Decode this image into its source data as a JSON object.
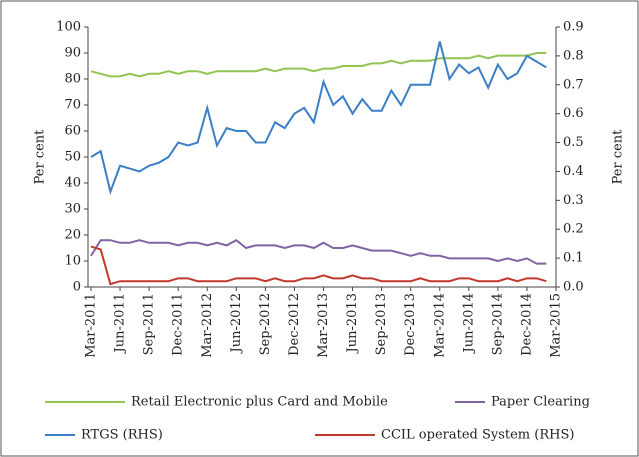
{
  "chart_data": {
    "type": "line",
    "categories": [
      "Mar-2011",
      null,
      null,
      "Jun-2011",
      null,
      null,
      "Sep-2011",
      null,
      null,
      "Dec-2011",
      null,
      null,
      "Mar-2012",
      null,
      null,
      "Jun-2012",
      null,
      null,
      "Sep-2012",
      null,
      null,
      "Dec-2012",
      null,
      null,
      "Mar-2013",
      null,
      null,
      "Jun-2013",
      null,
      null,
      "Sep-2013",
      null,
      null,
      "Dec-2013",
      null,
      null,
      "Mar-2014",
      null,
      null,
      "Jun-2014",
      null,
      null,
      "Sep-2014",
      null,
      null,
      "Dec-2014",
      null,
      null,
      "Mar-2015"
    ],
    "series": [
      {
        "name": "Retail Electronic plus Card and Mobile",
        "color": "#92c353",
        "axis": "y",
        "values": [
          83,
          82,
          81,
          81,
          82,
          81,
          82,
          82,
          83,
          82,
          83,
          83,
          82,
          83,
          83,
          83,
          83,
          83,
          84,
          83,
          84,
          84,
          84,
          83,
          84,
          84,
          85,
          85,
          85,
          86,
          86,
          87,
          86,
          87,
          87,
          87,
          88,
          88,
          88,
          88,
          89,
          88,
          89,
          89,
          89,
          89,
          90,
          90,
          null
        ]
      },
      {
        "name": "Paper Clearing",
        "color": "#8064a2",
        "axis": "y",
        "values": [
          12,
          18,
          18,
          17,
          17,
          18,
          17,
          17,
          17,
          16,
          17,
          17,
          16,
          17,
          16,
          18,
          15,
          16,
          16,
          16,
          15,
          16,
          16,
          15,
          17,
          15,
          15,
          16,
          15,
          14,
          14,
          14,
          13,
          12,
          13,
          12,
          12,
          11,
          11,
          11,
          11,
          11,
          10,
          11,
          10,
          11,
          9,
          9,
          null
        ]
      },
      {
        "name": "RTGS (RHS)",
        "color": "#3b7fc4",
        "axis": "y2",
        "values": [
          0.45,
          0.47,
          0.33,
          0.42,
          0.41,
          0.4,
          0.42,
          0.43,
          0.45,
          0.5,
          0.49,
          0.5,
          0.62,
          0.49,
          0.55,
          0.54,
          0.54,
          0.5,
          0.5,
          0.57,
          0.55,
          0.6,
          0.62,
          0.57,
          0.71,
          0.63,
          0.66,
          0.6,
          0.65,
          0.61,
          0.61,
          0.68,
          0.63,
          0.7,
          0.7,
          0.7,
          0.85,
          0.72,
          0.77,
          0.74,
          0.76,
          0.69,
          0.77,
          0.72,
          0.74,
          0.8,
          0.78,
          0.76,
          null
        ]
      },
      {
        "name": "CCIL operated System (RHS)",
        "color": "#c0392b",
        "axis": "y2",
        "values": [
          0.14,
          0.13,
          0.01,
          0.02,
          0.02,
          0.02,
          0.02,
          0.02,
          0.02,
          0.03,
          0.03,
          0.02,
          0.02,
          0.02,
          0.02,
          0.03,
          0.03,
          0.03,
          0.02,
          0.03,
          0.02,
          0.02,
          0.03,
          0.03,
          0.04,
          0.03,
          0.03,
          0.04,
          0.03,
          0.03,
          0.02,
          0.02,
          0.02,
          0.02,
          0.03,
          0.02,
          0.02,
          0.02,
          0.03,
          0.03,
          0.02,
          0.02,
          0.02,
          0.03,
          0.02,
          0.03,
          0.03,
          0.02,
          null
        ]
      }
    ],
    "ylabel": "Per cent",
    "y2label": "Per cent",
    "ylim": [
      0,
      100
    ],
    "yticks": [
      0,
      10,
      20,
      30,
      40,
      50,
      60,
      70,
      80,
      90,
      100
    ],
    "y2lim": [
      0,
      0.9
    ],
    "y2ticks": [
      {
        "value": 0,
        "label": "0.0"
      },
      0.1,
      0.2,
      0.3,
      0.4,
      0.5,
      0.6,
      0.7,
      0.8,
      0.9
    ]
  }
}
